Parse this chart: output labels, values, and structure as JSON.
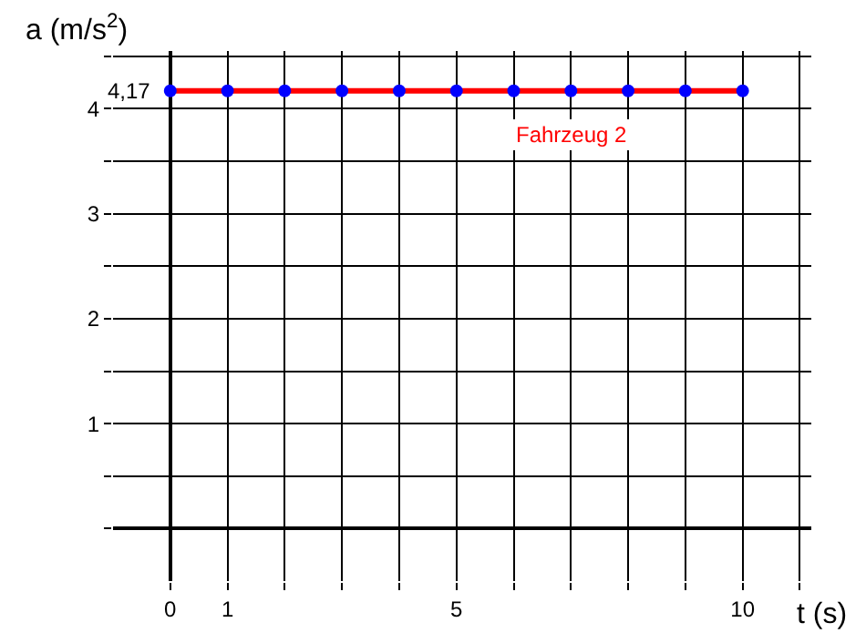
{
  "chart_data": {
    "type": "line",
    "xlabel": "t (s)",
    "ylabel": "a (m/s$^{2}$)",
    "x": [
      0,
      1,
      2,
      3,
      4,
      5,
      6,
      7,
      8,
      9,
      10
    ],
    "series": [
      {
        "name": "Fahrzeug 2",
        "color": "#ff0000",
        "marker": "none",
        "values": [
          4.17,
          4.17,
          4.17,
          4.17,
          4.17,
          4.17,
          4.17,
          4.17,
          4.17,
          4.17,
          4.17
        ]
      },
      {
        "type": "scatter",
        "color": "#0000ff",
        "marker": "circle",
        "values": [
          4.17,
          4.17,
          4.17,
          4.17,
          4.17,
          4.17,
          4.17,
          4.17,
          4.17,
          4.17,
          4.17
        ]
      }
    ],
    "xlim": [
      -1,
      11.2
    ],
    "ylim": [
      -0.5,
      4.55
    ],
    "xticks": [
      0,
      {
        "value": 1,
        "label": "1"
      },
      {
        "value": 2,
        "label": null
      },
      {
        "value": 3,
        "label": null
      },
      {
        "value": 4,
        "label": null
      },
      5,
      {
        "value": 6,
        "label": null
      },
      {
        "value": 7,
        "label": null
      },
      {
        "value": 8,
        "label": null
      },
      {
        "value": 9,
        "label": null
      },
      10,
      {
        "value": 11,
        "label": null
      }
    ],
    "yticks": [
      {
        "value": 0,
        "label": null
      },
      {
        "value": 0.5,
        "label": null
      },
      1,
      {
        "value": 1.5,
        "label": null
      },
      2,
      {
        "value": 2.5,
        "label": null
      },
      3,
      {
        "value": 3.5,
        "label": null
      },
      4,
      {
        "value": 4.5,
        "label": null
      }
    ],
    "grid": true,
    "annotations": [
      {
        "text": "4,17",
        "x": 0,
        "y": 4.17
      }
    ]
  }
}
